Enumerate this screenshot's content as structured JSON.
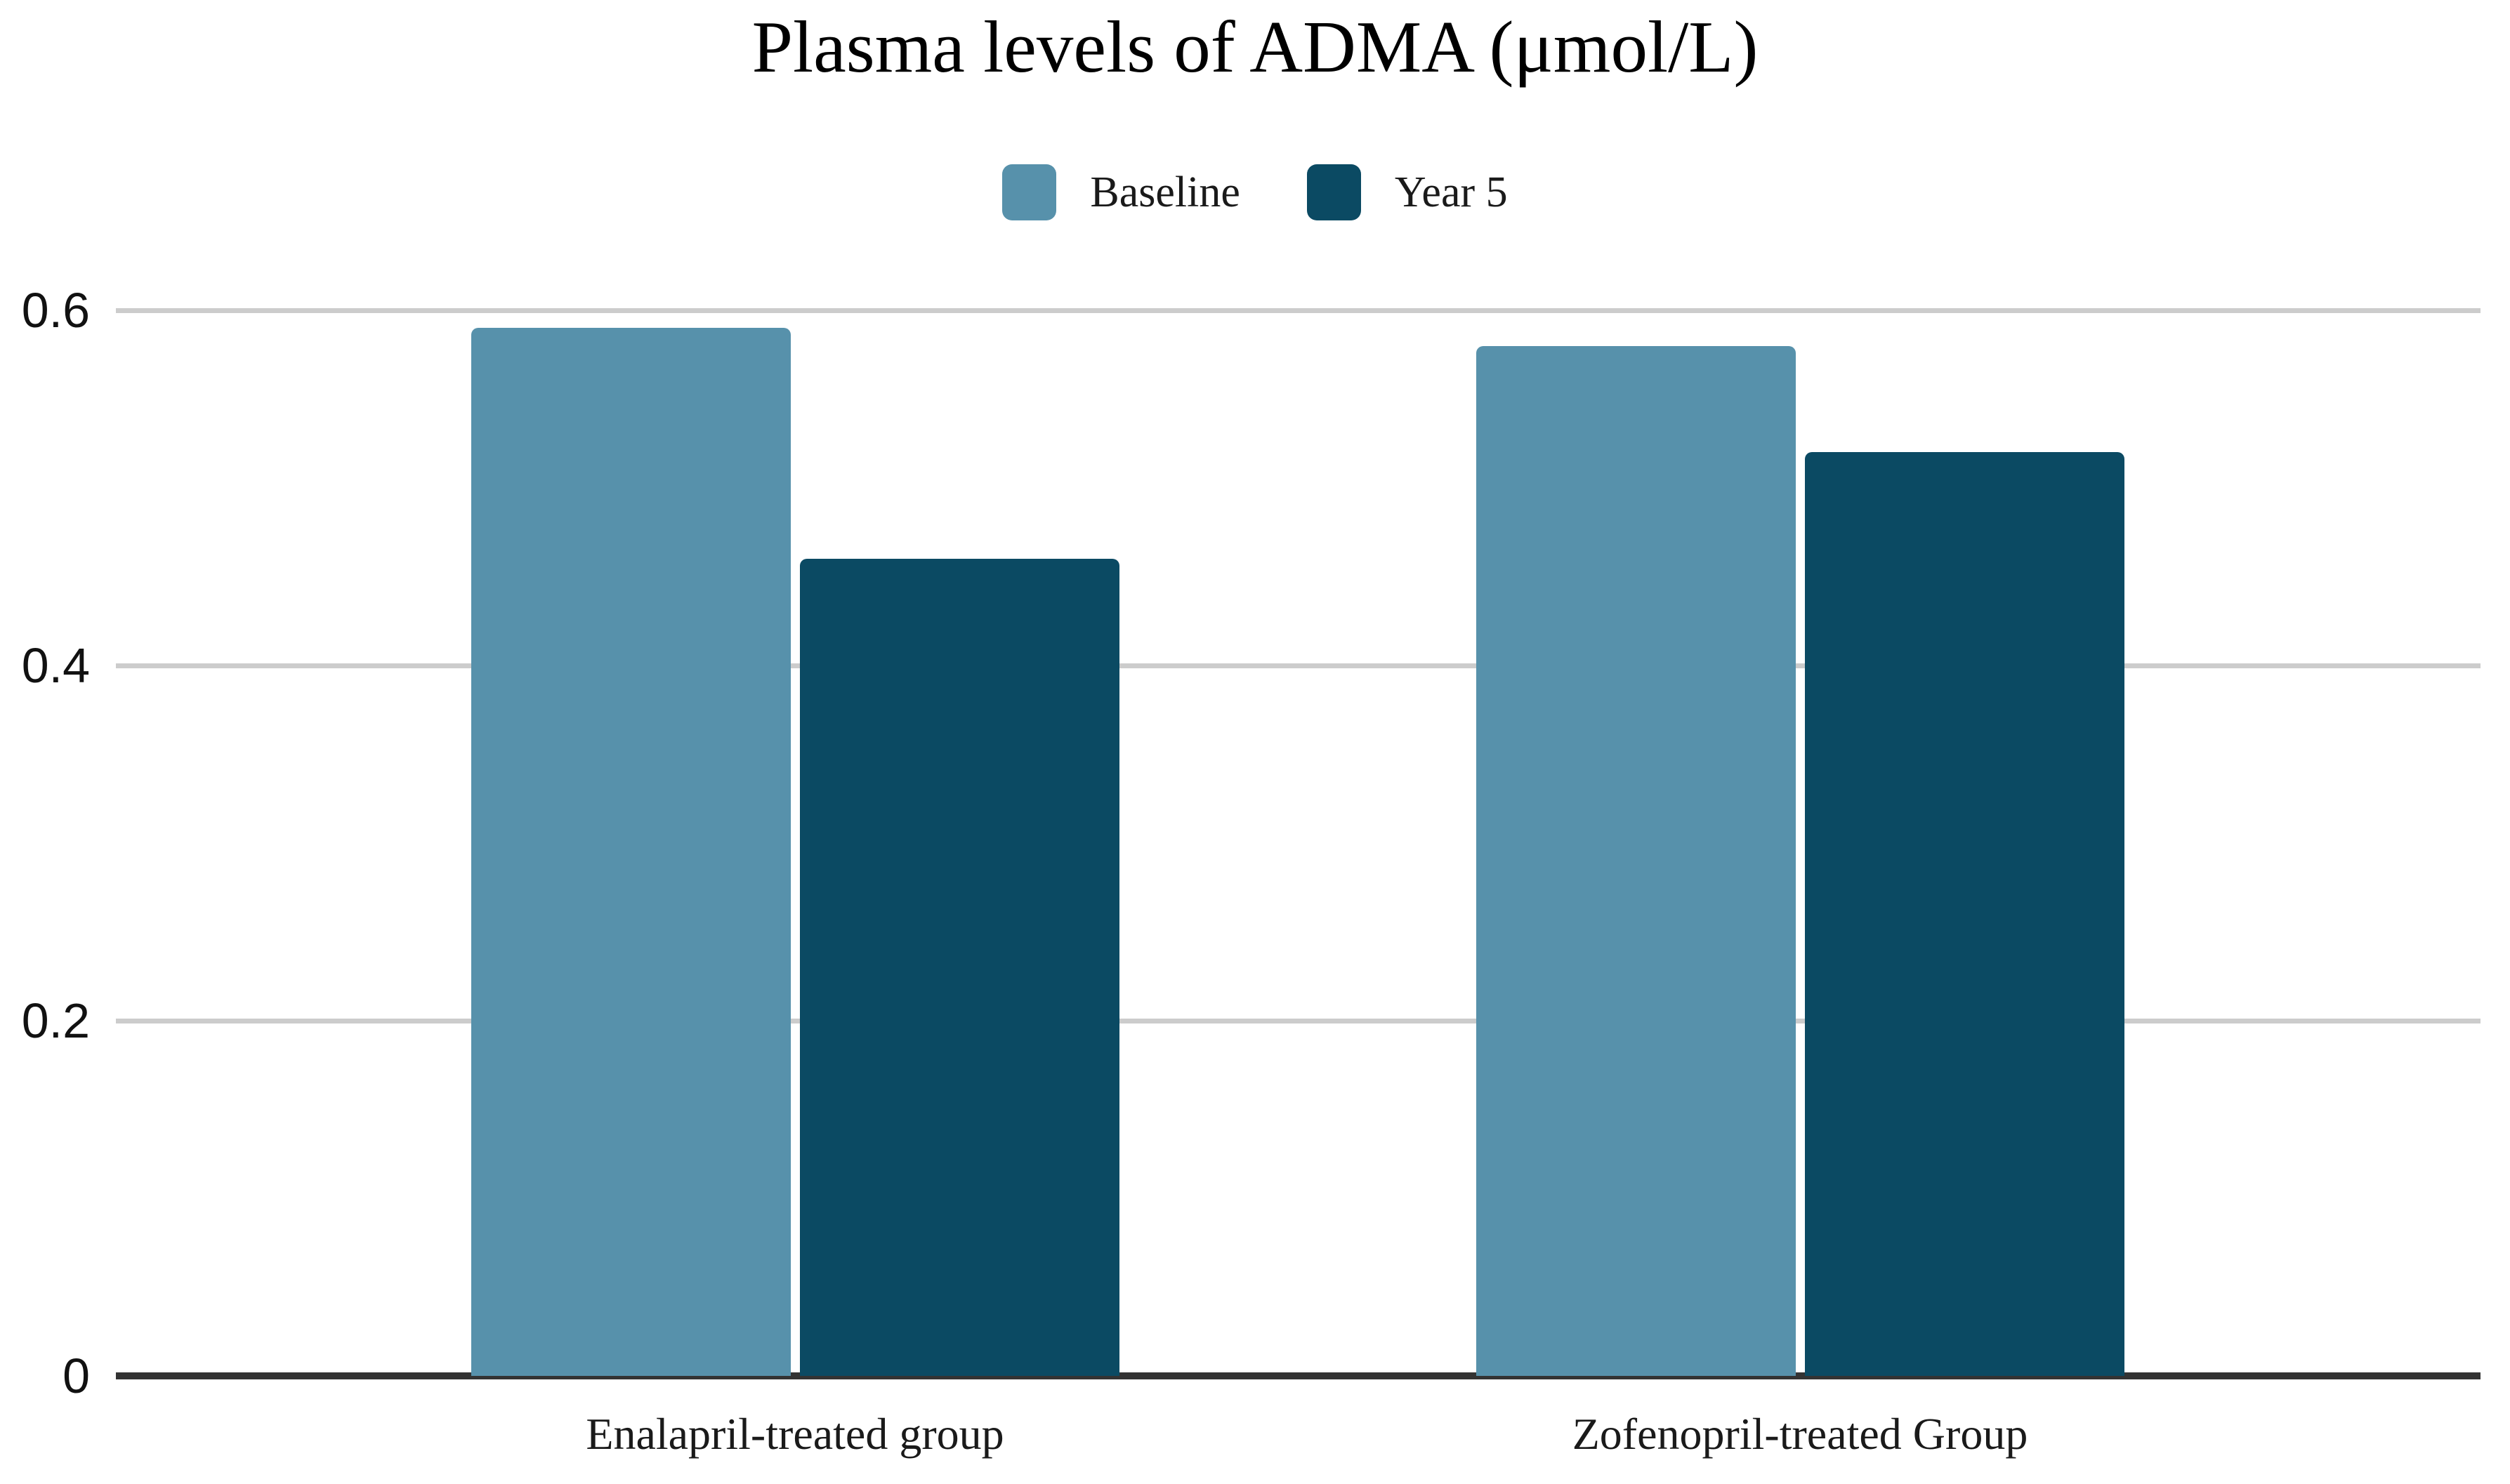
{
  "title": "Plasma levels of ADMA (μmol/L)",
  "legend": {
    "items": [
      {
        "label": "Baseline",
        "color": "#5791AB"
      },
      {
        "label": "Year 5",
        "color": "#0B4A63"
      }
    ]
  },
  "chart_data": {
    "type": "bar",
    "title": "Plasma levels of ADMA (μmol/L)",
    "categories": [
      "Enalapril-treated group",
      "Zofenopril-treated Group"
    ],
    "series": [
      {
        "name": "Baseline",
        "color": "#5791AB",
        "values": [
          0.59,
          0.58
        ]
      },
      {
        "name": "Year 5",
        "color": "#0B4A63",
        "values": [
          0.46,
          0.52
        ]
      }
    ],
    "ylim": [
      0,
      0.6
    ],
    "yticks": [
      0,
      0.2,
      0.4,
      0.6
    ],
    "ytick_labels": [
      "0",
      "0.2",
      "0.4",
      "0.6"
    ],
    "xlabel": "",
    "ylabel": "",
    "grid": true,
    "legend_position": "top",
    "colors": {
      "gridline": "#CCCCCC",
      "axis": "#333333",
      "title_text": "#000000",
      "tick_text": "#111111",
      "background": "#FFFFFF"
    }
  }
}
